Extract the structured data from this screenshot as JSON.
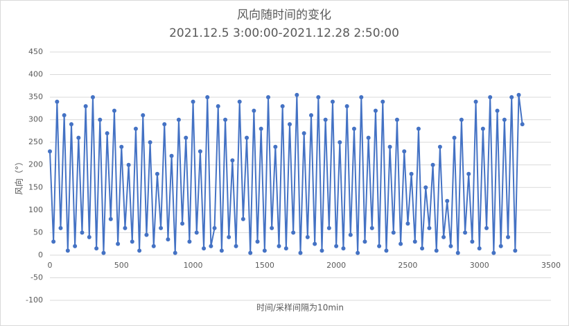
{
  "chart_data": {
    "type": "line",
    "title": "风向随时间的变化",
    "subtitle": "2021.12.5 3:00:00-2021.12.28 2:50:00",
    "x_label": "时间/采样间隔为10min",
    "y_label": "风向（°）",
    "xlim": [
      0,
      3500
    ],
    "xticks": [
      0,
      500,
      1000,
      1500,
      2000,
      2500,
      3000,
      3500
    ],
    "ylim": [
      -100,
      450
    ],
    "yticks": [
      -100,
      -50,
      0,
      50,
      100,
      150,
      200,
      250,
      300,
      350,
      400,
      450
    ],
    "grid": true,
    "series": [
      {
        "name": "风向",
        "color": "#4472c4",
        "x": [
          0,
          25,
          50,
          75,
          100,
          125,
          150,
          175,
          200,
          225,
          250,
          275,
          300,
          325,
          350,
          375,
          400,
          425,
          450,
          475,
          500,
          525,
          550,
          575,
          600,
          625,
          650,
          675,
          700,
          725,
          750,
          775,
          800,
          825,
          850,
          875,
          900,
          925,
          950,
          975,
          1000,
          1025,
          1050,
          1075,
          1100,
          1125,
          1150,
          1175,
          1200,
          1225,
          1250,
          1275,
          1300,
          1325,
          1350,
          1375,
          1400,
          1425,
          1450,
          1475,
          1500,
          1525,
          1550,
          1575,
          1600,
          1625,
          1650,
          1675,
          1700,
          1725,
          1750,
          1775,
          1800,
          1825,
          1850,
          1875,
          1900,
          1925,
          1950,
          1975,
          2000,
          2025,
          2050,
          2075,
          2100,
          2125,
          2150,
          2175,
          2200,
          2225,
          2250,
          2275,
          2300,
          2325,
          2350,
          2375,
          2400,
          2425,
          2450,
          2475,
          2500,
          2525,
          2550,
          2575,
          2600,
          2625,
          2650,
          2675,
          2700,
          2725,
          2750,
          2775,
          2800,
          2825,
          2850,
          2875,
          2900,
          2925,
          2950,
          2975,
          3000,
          3025,
          3050,
          3075,
          3100,
          3125,
          3150,
          3175,
          3200,
          3225,
          3250,
          3275,
          3300
        ],
        "values": [
          230,
          30,
          340,
          60,
          310,
          10,
          290,
          20,
          260,
          50,
          330,
          40,
          350,
          15,
          300,
          5,
          270,
          80,
          320,
          25,
          240,
          60,
          200,
          30,
          280,
          10,
          310,
          45,
          250,
          20,
          180,
          60,
          290,
          35,
          220,
          5,
          300,
          70,
          260,
          30,
          340,
          50,
          230,
          15,
          350,
          20,
          60,
          330,
          10,
          300,
          40,
          210,
          20,
          340,
          80,
          260,
          5,
          320,
          30,
          280,
          10,
          350,
          60,
          240,
          20,
          330,
          15,
          290,
          50,
          355,
          5,
          270,
          40,
          310,
          25,
          350,
          10,
          300,
          60,
          340,
          20,
          250,
          15,
          330,
          45,
          280,
          5,
          350,
          30,
          260,
          60,
          320,
          20,
          340,
          10,
          240,
          50,
          300,
          25,
          230,
          70,
          180,
          30,
          280,
          15,
          150,
          60,
          200,
          10,
          240,
          40,
          120,
          20,
          260,
          5,
          300,
          50,
          180,
          30,
          340,
          15,
          280,
          60,
          350,
          5,
          320,
          20,
          300,
          40,
          350,
          10,
          355,
          290
        ]
      }
    ]
  }
}
